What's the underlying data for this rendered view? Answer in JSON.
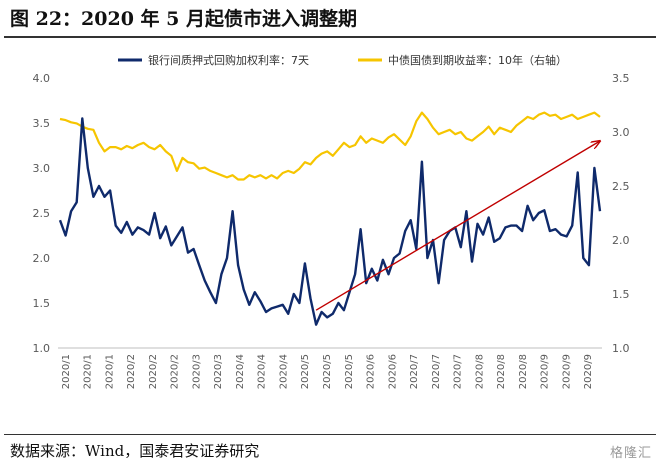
{
  "header": {
    "title": "图 22：2020 年 5 月起债市进入调整期"
  },
  "footer": {
    "source": "数据来源：Wind，国泰君安证券研究",
    "watermark": "格隆汇"
  },
  "chart_data": {
    "type": "line",
    "x_tick_labels": [
      "2020/1",
      "2020/1",
      "2020/1",
      "2020/2",
      "2020/2",
      "2020/2",
      "2020/3",
      "2020/3",
      "2020/4",
      "2020/4",
      "2020/4",
      "2020/5",
      "2020/5",
      "2020/5",
      "2020/6",
      "2020/6",
      "2020/7",
      "2020/7",
      "2020/7",
      "2020/8",
      "2020/8",
      "2020/8",
      "2020/9",
      "2020/9",
      "2020/9"
    ],
    "y_left": {
      "ticks": [
        "4.0",
        "3.5",
        "3.0",
        "2.5",
        "2.0",
        "1.5",
        "1.0"
      ],
      "min": 1.0,
      "max": 4.0
    },
    "y_right": {
      "ticks": [
        "3.5",
        "3.0",
        "2.5",
        "2.0",
        "1.5",
        "1.0"
      ],
      "min": 1.0,
      "max": 3.5
    },
    "series": [
      {
        "name": "银行间质押式回购加权利率：7天",
        "axis": "left",
        "color": "#0f2a6b",
        "values": [
          2.42,
          2.25,
          2.52,
          2.62,
          3.55,
          3.0,
          2.68,
          2.8,
          2.68,
          2.75,
          2.36,
          2.28,
          2.4,
          2.26,
          2.34,
          2.31,
          2.26,
          2.5,
          2.22,
          2.35,
          2.14,
          2.24,
          2.34,
          2.06,
          2.1,
          1.92,
          1.75,
          1.62,
          1.5,
          1.82,
          2.0,
          2.52,
          1.92,
          1.65,
          1.48,
          1.62,
          1.52,
          1.4,
          1.44,
          1.46,
          1.48,
          1.38,
          1.6,
          1.5,
          1.94,
          1.55,
          1.26,
          1.4,
          1.34,
          1.38,
          1.5,
          1.42,
          1.62,
          1.82,
          2.32,
          1.72,
          1.88,
          1.75,
          1.98,
          1.82,
          2.0,
          2.05,
          2.3,
          2.42,
          2.1,
          3.07,
          2.0,
          2.2,
          1.72,
          2.2,
          2.3,
          2.34,
          2.12,
          2.52,
          1.96,
          2.38,
          2.26,
          2.45,
          2.18,
          2.22,
          2.34,
          2.36,
          2.36,
          2.3,
          2.58,
          2.42,
          2.5,
          2.53,
          2.3,
          2.32,
          2.26,
          2.24,
          2.36,
          2.95,
          2.0,
          1.92,
          3.0,
          2.52
        ]
      },
      {
        "name": "中债国债到期收益率：10年（右轴）",
        "axis": "right",
        "color": "#f6c500",
        "values": [
          3.12,
          3.11,
          3.09,
          3.08,
          3.05,
          3.03,
          3.02,
          2.9,
          2.82,
          2.86,
          2.86,
          2.84,
          2.87,
          2.85,
          2.88,
          2.9,
          2.86,
          2.84,
          2.88,
          2.82,
          2.78,
          2.64,
          2.76,
          2.72,
          2.71,
          2.66,
          2.67,
          2.64,
          2.62,
          2.6,
          2.58,
          2.6,
          2.56,
          2.56,
          2.6,
          2.58,
          2.6,
          2.57,
          2.6,
          2.57,
          2.62,
          2.64,
          2.62,
          2.66,
          2.72,
          2.7,
          2.76,
          2.8,
          2.82,
          2.78,
          2.84,
          2.9,
          2.86,
          2.88,
          2.96,
          2.9,
          2.94,
          2.92,
          2.9,
          2.95,
          2.98,
          2.93,
          2.88,
          2.96,
          3.1,
          3.18,
          3.12,
          3.04,
          2.98,
          3.0,
          3.02,
          2.98,
          3.0,
          2.94,
          2.92,
          2.96,
          3.0,
          3.05,
          2.98,
          3.04,
          3.02,
          3.0,
          3.06,
          3.1,
          3.14,
          3.12,
          3.16,
          3.18,
          3.15,
          3.16,
          3.12,
          3.14,
          3.16,
          3.12,
          3.14,
          3.16,
          3.18,
          3.14
        ]
      }
    ],
    "annotation": {
      "type": "arrow",
      "color": "#c00000",
      "from": {
        "index": 46,
        "y_left": 1.42
      },
      "to": {
        "index": 97,
        "y_left": 3.3
      }
    },
    "legend_position": "top",
    "grid": false
  }
}
